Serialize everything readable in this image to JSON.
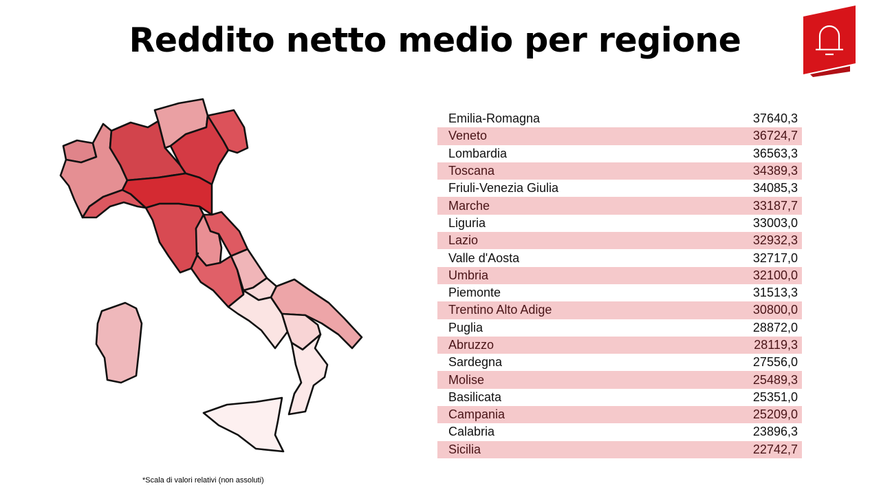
{
  "title": "Reddito netto medio per regione",
  "footnote": "*Scala di valori relativi (non assoluti)",
  "logo": {
    "icon": "bell-icon",
    "color": "#d7141a"
  },
  "table": [
    {
      "region": "Emilia-Romagna",
      "value": "37640,3"
    },
    {
      "region": "Veneto",
      "value": "36724,7"
    },
    {
      "region": "Lombardia",
      "value": "36563,3"
    },
    {
      "region": "Toscana",
      "value": "34389,3"
    },
    {
      "region": "Friuli-Venezia Giulia",
      "value": "34085,3"
    },
    {
      "region": "Marche",
      "value": "33187,7"
    },
    {
      "region": "Liguria",
      "value": "33003,0"
    },
    {
      "region": "Lazio",
      "value": "32932,3"
    },
    {
      "region": "Valle d'Aosta",
      "value": "32717,0"
    },
    {
      "region": "Umbria",
      "value": "32100,0"
    },
    {
      "region": "Piemonte",
      "value": "31513,3"
    },
    {
      "region": "Trentino Alto Adige",
      "value": "30800,0"
    },
    {
      "region": "Puglia",
      "value": "28872,0"
    },
    {
      "region": "Abruzzo",
      "value": "28119,3"
    },
    {
      "region": "Sardegna",
      "value": "27556,0"
    },
    {
      "region": "Molise",
      "value": "25489,3"
    },
    {
      "region": "Basilicata",
      "value": "25351,0"
    },
    {
      "region": "Campania",
      "value": "25209,0"
    },
    {
      "region": "Calabria",
      "value": "23896,3"
    },
    {
      "region": "Sicilia",
      "value": "22742,7"
    }
  ],
  "map_colors": {
    "Valle d'Aosta": "#e0848a",
    "Piemonte": "#e58f93",
    "Lombardia": "#d2444c",
    "Trentino Alto Adige": "#eaa0a3",
    "Veneto": "#d43a44",
    "Friuli-Venezia Giulia": "#dc525a",
    "Liguria": "#dc5860",
    "Emilia-Romagna": "#d42a32",
    "Toscana": "#d84a52",
    "Marche": "#de5a62",
    "Umbria": "#e98f94",
    "Lazio": "#e06068",
    "Abruzzo": "#f0b5b8",
    "Molise": "#f9dada",
    "Campania": "#fbe4e3",
    "Puglia": "#eda5a8",
    "Basilicata": "#f8d4d5",
    "Calabria": "#fce8e8",
    "Sicilia": "#fdf0f0",
    "Sardegna": "#efb8bb"
  }
}
